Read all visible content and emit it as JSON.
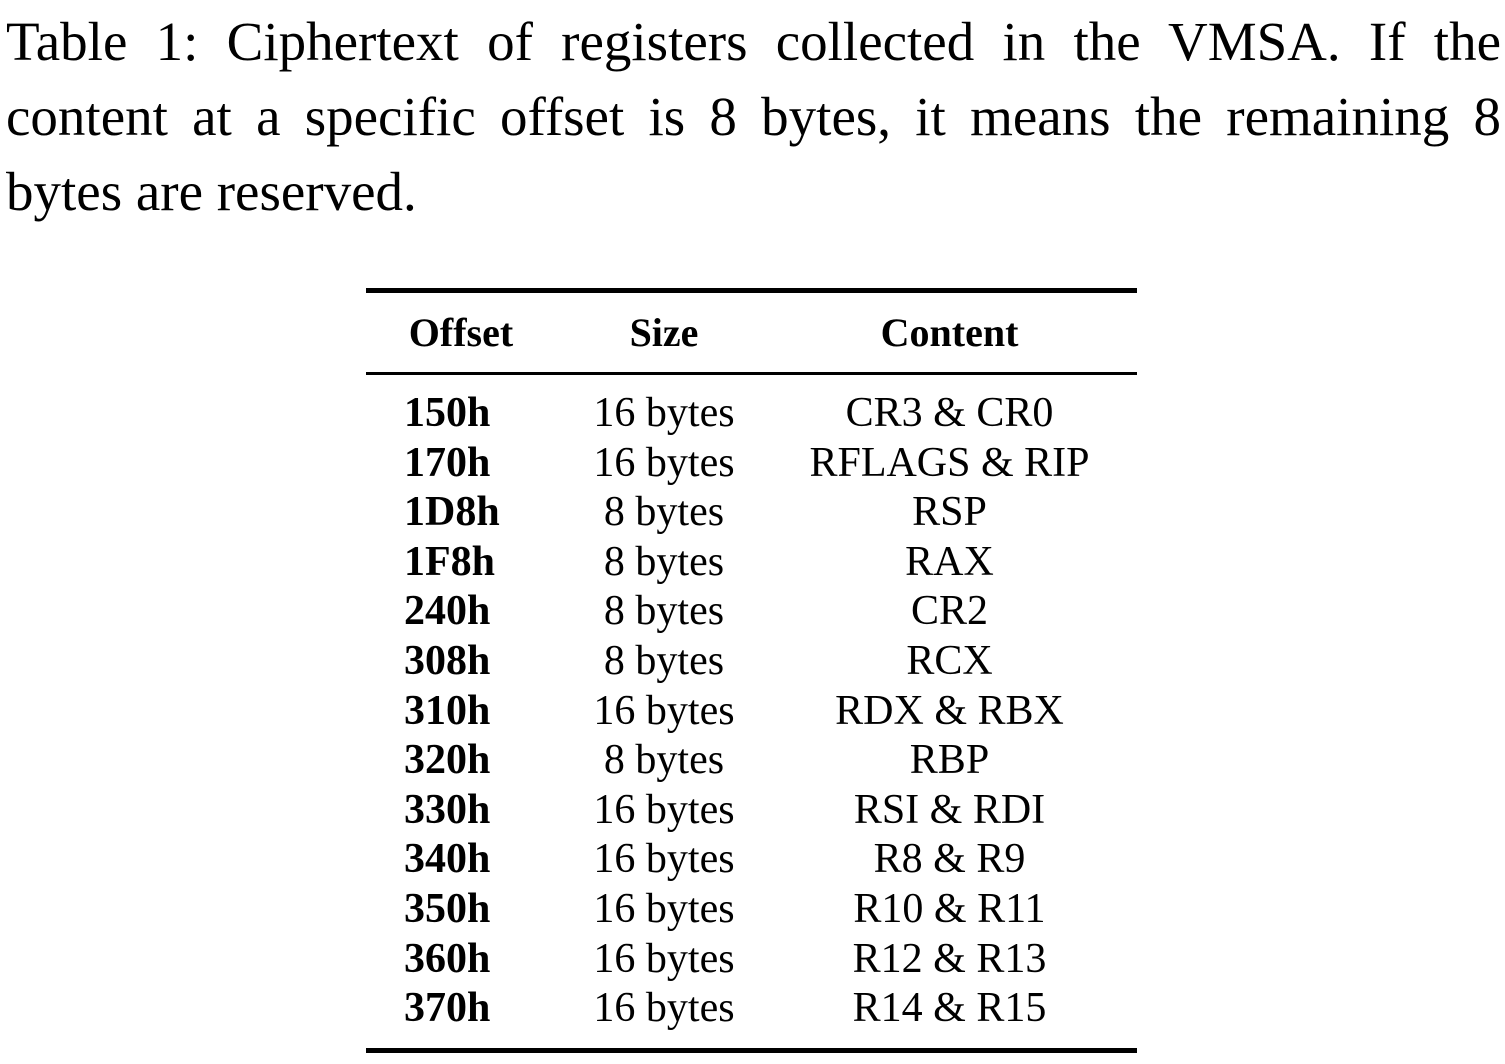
{
  "caption": "Table 1: Ciphertext of registers collected in the VMSA. If the content at a specific offset is 8 bytes, it means the remaining 8 bytes are reserved.",
  "table": {
    "headers": {
      "offset": "Offset",
      "size": "Size",
      "content": "Content"
    },
    "rows": [
      {
        "offset": "150h",
        "size": "16 bytes",
        "content": "CR3 & CR0"
      },
      {
        "offset": "170h",
        "size": "16 bytes",
        "content": "RFLAGS & RIP"
      },
      {
        "offset": "1D8h",
        "size": "8 bytes",
        "content": "RSP"
      },
      {
        "offset": "1F8h",
        "size": "8 bytes",
        "content": "RAX"
      },
      {
        "offset": "240h",
        "size": "8 bytes",
        "content": "CR2"
      },
      {
        "offset": "308h",
        "size": "8 bytes",
        "content": "RCX"
      },
      {
        "offset": "310h",
        "size": "16 bytes",
        "content": "RDX & RBX"
      },
      {
        "offset": "320h",
        "size": "8 bytes",
        "content": "RBP"
      },
      {
        "offset": "330h",
        "size": "16 bytes",
        "content": "RSI & RDI"
      },
      {
        "offset": "340h",
        "size": "16 bytes",
        "content": "R8 & R9"
      },
      {
        "offset": "350h",
        "size": "16 bytes",
        "content": "R10 & R11"
      },
      {
        "offset": "360h",
        "size": "16 bytes",
        "content": "R12 & R13"
      },
      {
        "offset": "370h",
        "size": "16 bytes",
        "content": "R14 & R15"
      }
    ]
  }
}
